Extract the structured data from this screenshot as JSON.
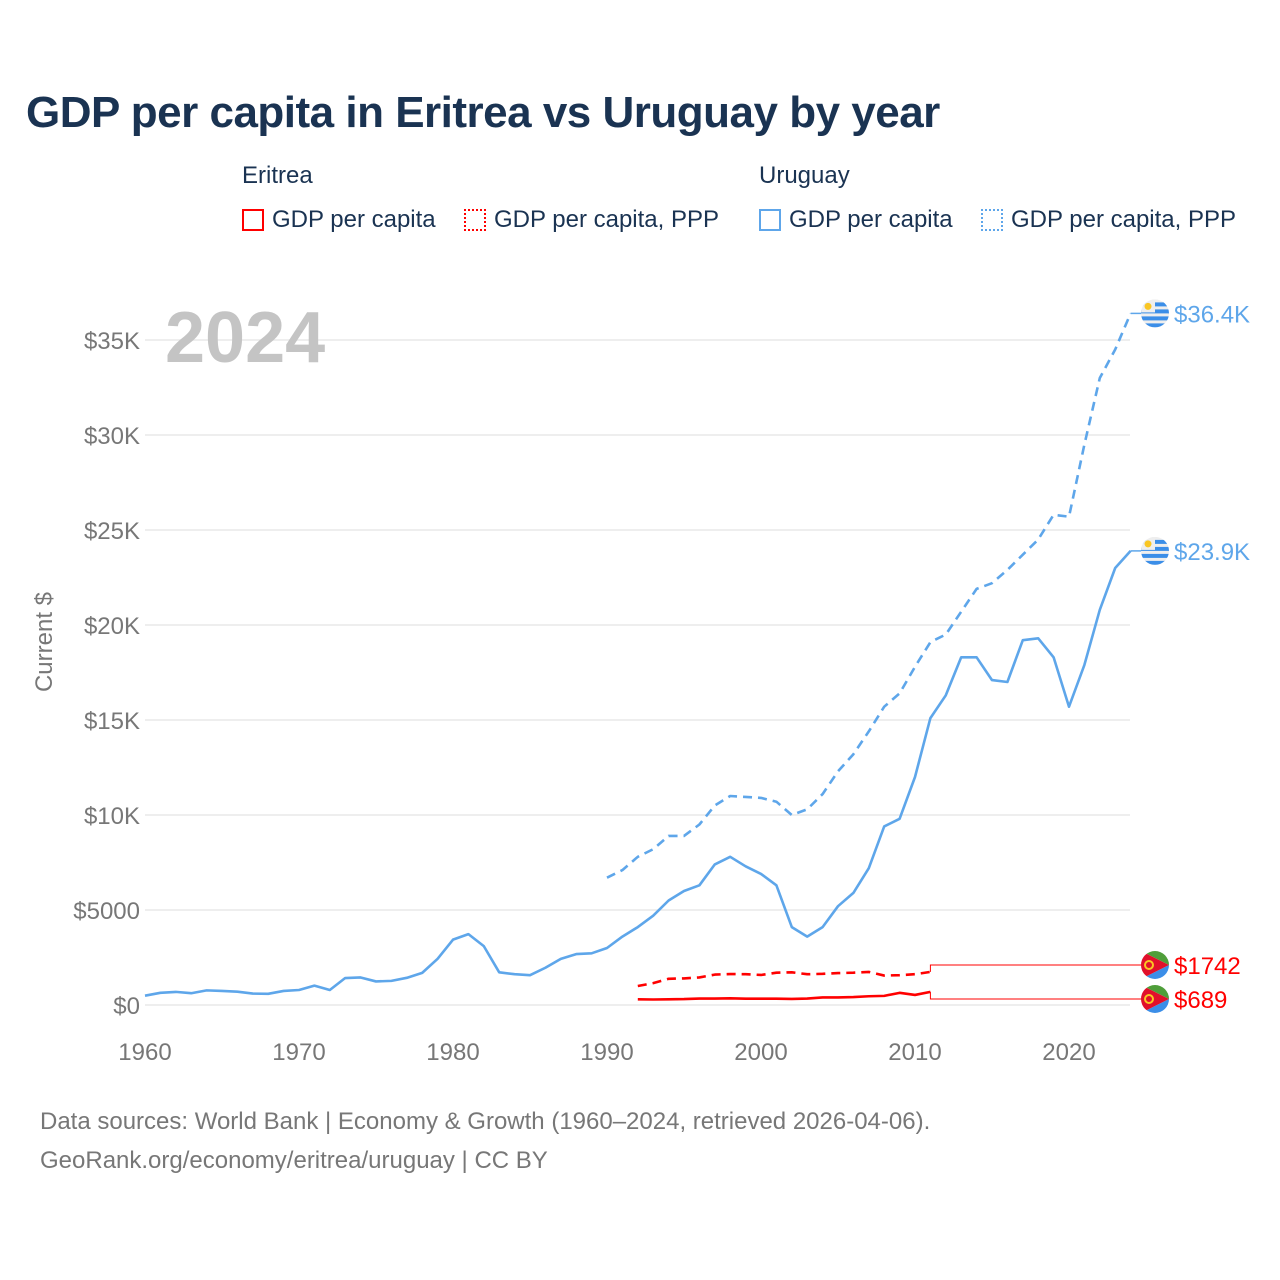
{
  "chart_data": {
    "type": "line",
    "title": "GDP per capita in Eritrea vs Uruguay by year",
    "ylabel": "Current $",
    "xlabel": "",
    "year_marker": "2024",
    "xlim": [
      1960,
      2024
    ],
    "ylim": [
      0,
      35000
    ],
    "x_ticks": [
      {
        "v": 1960,
        "label": "1960"
      },
      {
        "v": 1970,
        "label": "1970"
      },
      {
        "v": 1980,
        "label": "1980"
      },
      {
        "v": 1990,
        "label": "1990"
      },
      {
        "v": 2000,
        "label": "2000"
      },
      {
        "v": 2010,
        "label": "2010"
      },
      {
        "v": 2020,
        "label": "2020"
      }
    ],
    "y_ticks": [
      {
        "v": 0,
        "label": "$0"
      },
      {
        "v": 5000,
        "label": "$5000"
      },
      {
        "v": 10000,
        "label": "$10K"
      },
      {
        "v": 15000,
        "label": "$15K"
      },
      {
        "v": 20000,
        "label": "$20K"
      },
      {
        "v": 25000,
        "label": "$25K"
      },
      {
        "v": 30000,
        "label": "$30K"
      },
      {
        "v": 35000,
        "label": "$35K"
      }
    ],
    "grid": true,
    "legend": {
      "placement": "top",
      "groups": [
        {
          "name": "Eritrea",
          "items": [
            "GDP per capita",
            "GDP per capita, PPP"
          ]
        },
        {
          "name": "Uruguay",
          "items": [
            "GDP per capita",
            "GDP per capita, PPP"
          ]
        }
      ]
    },
    "series": [
      {
        "name": "Uruguay GDP per capita",
        "country": "Uruguay",
        "color": "#5ea6ea",
        "dash": false,
        "start": 1960,
        "end_label": "$23.9K",
        "values": [
          490,
          640,
          690,
          620,
          770,
          740,
          700,
          600,
          590,
          740,
          790,
          1020,
          790,
          1420,
          1450,
          1240,
          1270,
          1430,
          1690,
          2430,
          3440,
          3730,
          3100,
          1720,
          1620,
          1570,
          1960,
          2430,
          2680,
          2720,
          3000,
          3600,
          4100,
          4700,
          5500,
          6000,
          6300,
          7400,
          7800,
          7300,
          6900,
          6300,
          4100,
          3600,
          4100,
          5200,
          5900,
          7200,
          9400,
          9800,
          12000,
          15100,
          16300,
          18300,
          18300,
          17100,
          17000,
          19200,
          19300,
          18300,
          15700,
          17900,
          20800,
          23000,
          23900
        ]
      },
      {
        "name": "Uruguay GDP per capita, PPP",
        "country": "Uruguay",
        "color": "#5ea6ea",
        "dash": true,
        "start": 1990,
        "end_label": "$36.4K",
        "values": [
          6700,
          7100,
          7800,
          8200,
          8900,
          8900,
          9500,
          10500,
          11000,
          10950,
          10900,
          10700,
          10000,
          10300,
          11100,
          12300,
          13200,
          14400,
          15700,
          16400,
          17800,
          19100,
          19500,
          20700,
          21900,
          22200,
          22900,
          23700,
          24500,
          25800,
          25700,
          29500,
          33000,
          34500,
          36400
        ]
      },
      {
        "name": "Eritrea GDP per capita",
        "country": "Eritrea",
        "color": "#ff0000",
        "dash": false,
        "start": 1992,
        "end_label": "$689",
        "values": [
          300,
          290,
          300,
          310,
          340,
          340,
          350,
          330,
          330,
          330,
          320,
          340,
          400,
          400,
          420,
          460,
          480,
          640,
          530,
          689
        ]
      },
      {
        "name": "Eritrea GDP per capita, PPP",
        "country": "Eritrea",
        "color": "#ff0000",
        "dash": true,
        "start": 1992,
        "end_label": "$1742",
        "values": [
          1000,
          1150,
          1380,
          1400,
          1450,
          1600,
          1630,
          1620,
          1580,
          1700,
          1720,
          1620,
          1640,
          1680,
          1700,
          1740,
          1550,
          1570,
          1620,
          1742
        ]
      }
    ]
  },
  "footer": {
    "line1": "Data sources: World Bank | Economy & Growth (1960–2024, retrieved 2026-04-06).",
    "line2": "GeoRank.org/economy/eritrea/uruguay | CC BY"
  }
}
